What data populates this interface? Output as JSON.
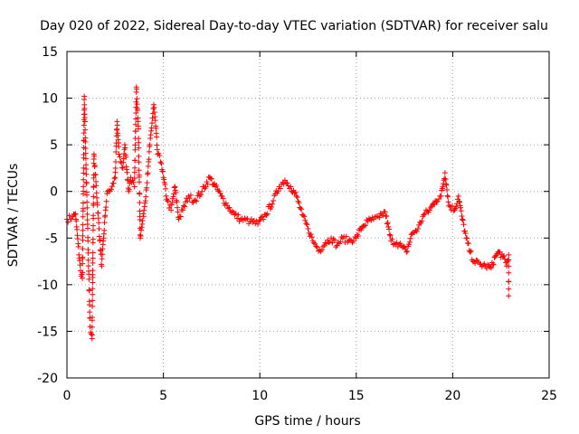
{
  "chart_data": {
    "type": "scatter",
    "title": "Day 020 of 2022, Sidereal Day-to-day VTEC variation (SDTVAR) for receiver salu",
    "xlabel": "GPS time / hours",
    "ylabel": "SDTVAR / TECUs",
    "xlim": [
      0,
      25
    ],
    "ylim": [
      -20,
      15
    ],
    "xticks": [
      0,
      5,
      10,
      15,
      20,
      25
    ],
    "yticks": [
      -20,
      -15,
      -10,
      -5,
      0,
      5,
      10,
      15
    ],
    "grid": true,
    "marker": "+",
    "color": "#ff0000",
    "series": [
      {
        "name": "SDTVAR",
        "control_points": [
          [
            0.0,
            -3.0
          ],
          [
            0.3,
            -2.7
          ],
          [
            0.45,
            -2.4
          ],
          [
            0.5,
            -3.8
          ],
          [
            0.7,
            -8.5
          ],
          [
            0.8,
            -9.3
          ],
          [
            0.9,
            10.2
          ],
          [
            1.2,
            -14.5
          ],
          [
            1.3,
            -15.8
          ],
          [
            1.4,
            4.0
          ],
          [
            1.8,
            -8.0
          ],
          [
            1.9,
            -5.0
          ],
          [
            2.0,
            -2.0
          ],
          [
            2.1,
            0.0
          ],
          [
            2.3,
            0.2
          ],
          [
            2.5,
            1.5
          ],
          [
            2.6,
            7.5
          ],
          [
            2.7,
            4.0
          ],
          [
            2.9,
            2.5
          ],
          [
            3.0,
            5.0
          ],
          [
            3.2,
            0.0
          ],
          [
            3.3,
            1.5
          ],
          [
            3.5,
            0.5
          ],
          [
            3.6,
            11.2
          ],
          [
            3.7,
            7.0
          ],
          [
            3.8,
            -5.0
          ],
          [
            3.9,
            -3.5
          ],
          [
            4.0,
            -2.0
          ],
          [
            4.2,
            2.0
          ],
          [
            4.3,
            5.0
          ],
          [
            4.5,
            9.3
          ],
          [
            4.6,
            7.0
          ],
          [
            4.7,
            4.0
          ],
          [
            4.9,
            3.0
          ],
          [
            5.0,
            1.5
          ],
          [
            5.2,
            -1.0
          ],
          [
            5.4,
            -2.0
          ],
          [
            5.6,
            0.5
          ],
          [
            5.8,
            -3.0
          ],
          [
            6.0,
            -2.0
          ],
          [
            6.3,
            -0.5
          ],
          [
            6.6,
            -1.0
          ],
          [
            7.0,
            0.0
          ],
          [
            7.4,
            1.5
          ],
          [
            7.7,
            0.5
          ],
          [
            8.0,
            -0.5
          ],
          [
            8.3,
            -1.5
          ],
          [
            8.7,
            -2.5
          ],
          [
            9.0,
            -3.0
          ],
          [
            9.5,
            -3.2
          ],
          [
            9.9,
            -3.5
          ],
          [
            10.3,
            -2.5
          ],
          [
            10.7,
            -1.0
          ],
          [
            11.0,
            0.5
          ],
          [
            11.3,
            1.2
          ],
          [
            11.6,
            0.5
          ],
          [
            11.9,
            -0.5
          ],
          [
            12.2,
            -2.5
          ],
          [
            12.5,
            -4.0
          ],
          [
            12.8,
            -5.5
          ],
          [
            13.1,
            -6.3
          ],
          [
            13.4,
            -5.5
          ],
          [
            13.7,
            -5.0
          ],
          [
            14.0,
            -5.8
          ],
          [
            14.3,
            -5.0
          ],
          [
            14.6,
            -5.3
          ],
          [
            15.0,
            -5.0
          ],
          [
            15.3,
            -3.8
          ],
          [
            15.6,
            -3.2
          ],
          [
            15.9,
            -3.0
          ],
          [
            16.2,
            -2.8
          ],
          [
            16.5,
            -2.2
          ],
          [
            16.8,
            -5.3
          ],
          [
            17.1,
            -5.5
          ],
          [
            17.4,
            -6.0
          ],
          [
            17.6,
            -6.5
          ],
          [
            17.9,
            -4.5
          ],
          [
            18.2,
            -4.0
          ],
          [
            18.5,
            -2.5
          ],
          [
            18.8,
            -2.0
          ],
          [
            19.1,
            -1.0
          ],
          [
            19.4,
            -0.5
          ],
          [
            19.6,
            2.0
          ],
          [
            19.8,
            -1.5
          ],
          [
            20.1,
            -2.0
          ],
          [
            20.3,
            -0.5
          ],
          [
            20.5,
            -3.0
          ],
          [
            20.7,
            -5.0
          ],
          [
            20.9,
            -6.5
          ],
          [
            21.1,
            -7.5
          ],
          [
            21.4,
            -7.8
          ],
          [
            21.7,
            -8.0
          ],
          [
            22.0,
            -8.2
          ],
          [
            22.2,
            -7.0
          ],
          [
            22.4,
            -6.5
          ],
          [
            22.6,
            -7.0
          ],
          [
            22.8,
            -8.0
          ],
          [
            22.9,
            -6.8
          ],
          [
            22.9,
            -11.2
          ]
        ]
      }
    ]
  }
}
